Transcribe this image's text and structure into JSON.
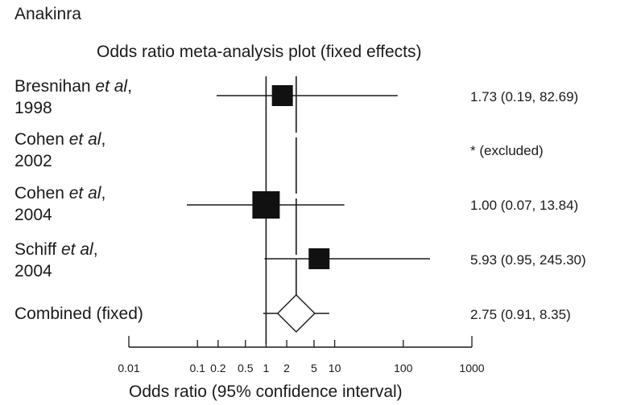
{
  "header": {
    "top_label": "Anakinra"
  },
  "chart_data": {
    "type": "forest",
    "title": "Odds ratio meta-analysis plot (fixed effects)",
    "xlabel": "Odds ratio (95% confidence interval)",
    "x_scale": "log",
    "xlim": [
      0.01,
      1000
    ],
    "ticks": [
      0.01,
      0.1,
      0.2,
      0.5,
      1,
      2,
      5,
      10,
      100,
      1000
    ],
    "tick_labels": [
      "0.01",
      "0.1",
      "0.2",
      "0.5",
      "1",
      "2",
      "5",
      "10",
      "100",
      "1000"
    ],
    "reference_line": 1,
    "combined_line": 2.75,
    "studies": [
      {
        "name": "Bresnihan",
        "etal": "et al",
        "sep": ",",
        "year": "1998",
        "or": 1.73,
        "ci": [
          0.19,
          82.69
        ],
        "label": "1.73 (0.19, 82.69)",
        "weight": "medium"
      },
      {
        "name": "Cohen",
        "etal": "et al",
        "sep": ",",
        "year": "2002",
        "or": null,
        "ci": null,
        "label": "* (excluded)",
        "weight": "none"
      },
      {
        "name": "Cohen",
        "etal": "et al",
        "sep": ",",
        "year": "2004",
        "or": 1.0,
        "ci": [
          0.07,
          13.84
        ],
        "label": "1.00 (0.07, 13.84)",
        "weight": "large"
      },
      {
        "name": "Schiff",
        "etal": "et al",
        "sep": ",",
        "year": "2004",
        "or": 5.93,
        "ci": [
          0.95,
          245.3
        ],
        "label": "5.93 (0.95, 245.30)",
        "weight": "medium"
      }
    ],
    "combined": {
      "name": "Combined (fixed)",
      "or": 2.75,
      "ci": [
        0.91,
        8.35
      ],
      "label": "2.75 (0.91, 8.35)"
    }
  }
}
